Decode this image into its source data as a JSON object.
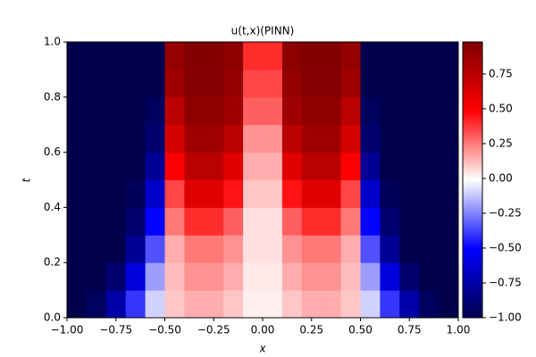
{
  "chart_data": {
    "type": "heatmap",
    "title": "u(t,x)(PINN)",
    "x_label": "x",
    "y_label": "t",
    "xlim": [
      -1,
      1
    ],
    "ylim": [
      0,
      1
    ],
    "clim": [
      -1,
      0.98
    ],
    "xticks": [
      {
        "value": -1,
        "label": "−1.00"
      },
      {
        "value": -0.75,
        "label": "−0.75"
      },
      {
        "value": -0.5,
        "label": "−0.50"
      },
      {
        "value": -0.25,
        "label": "−0.25"
      },
      {
        "value": 0,
        "label": "0.00"
      },
      {
        "value": 0.25,
        "label": "0.25"
      },
      {
        "value": 0.5,
        "label": "0.50"
      },
      {
        "value": 0.75,
        "label": "0.75"
      },
      {
        "value": 1,
        "label": "1.00"
      }
    ],
    "yticks": [
      {
        "value": 0,
        "label": "0.0"
      },
      0.2,
      0.4,
      0.6,
      0.8,
      {
        "value": 1,
        "label": "1.0"
      }
    ],
    "colorbar_ticks": [
      {
        "value": -1,
        "label": "−1.00"
      },
      {
        "value": -0.75,
        "label": "−0.75"
      },
      {
        "value": -0.5,
        "label": "−0.50"
      },
      {
        "value": -0.25,
        "label": "−0.25"
      },
      {
        "value": 0,
        "label": "0.00"
      },
      {
        "value": 0.25,
        "label": "0.25"
      },
      {
        "value": 0.5,
        "label": "0.50"
      },
      {
        "value": 0.75,
        "label": "0.75"
      }
    ],
    "z": [
      [
        -1,
        -0.95,
        -0.75,
        -0.4,
        -0.1,
        0.1,
        0.15,
        0.15,
        0.1,
        0.02,
        0.02,
        0.1,
        0.15,
        0.15,
        0.1,
        -0.1,
        -0.4,
        -0.75,
        -0.95,
        -1
      ],
      [
        -1,
        -1,
        -0.9,
        -0.6,
        -0.2,
        0.12,
        0.2,
        0.2,
        0.15,
        0.03,
        0.03,
        0.15,
        0.2,
        0.2,
        0.12,
        -0.2,
        -0.6,
        -0.9,
        -1,
        -1
      ],
      [
        -1,
        -1,
        -1,
        -0.8,
        -0.35,
        0.15,
        0.25,
        0.25,
        0.2,
        0.05,
        0.05,
        0.2,
        0.25,
        0.25,
        0.15,
        -0.35,
        -0.8,
        -1,
        -1,
        -1
      ],
      [
        -1,
        -1,
        -1,
        -0.9,
        -0.5,
        0.25,
        0.4,
        0.4,
        0.3,
        0.05,
        0.05,
        0.3,
        0.4,
        0.4,
        0.25,
        -0.5,
        -0.9,
        -1,
        -1,
        -1
      ],
      [
        -1,
        -1,
        -1,
        -0.97,
        -0.65,
        0.35,
        0.6,
        0.6,
        0.45,
        0.1,
        0.1,
        0.45,
        0.6,
        0.6,
        0.35,
        -0.65,
        -0.97,
        -1,
        -1,
        -1
      ],
      [
        -1,
        -1,
        -1,
        -1,
        -0.8,
        0.5,
        0.75,
        0.75,
        0.6,
        0.15,
        0.15,
        0.6,
        0.75,
        0.75,
        0.5,
        -0.8,
        -1,
        -1,
        -1,
        -1
      ],
      [
        -1,
        -1,
        -1,
        -1,
        -0.9,
        0.65,
        0.85,
        0.85,
        0.75,
        0.2,
        0.2,
        0.75,
        0.85,
        0.85,
        0.65,
        -0.9,
        -1,
        -1,
        -1,
        -1
      ],
      [
        -1,
        -1,
        -1,
        -1,
        -0.95,
        0.75,
        0.92,
        0.92,
        0.85,
        0.3,
        0.3,
        0.85,
        0.92,
        0.92,
        0.75,
        -0.95,
        -1,
        -1,
        -1,
        -1
      ],
      [
        -1,
        -1,
        -1,
        -1,
        -1,
        0.85,
        0.96,
        0.96,
        0.9,
        0.35,
        0.35,
        0.9,
        0.96,
        0.96,
        0.85,
        -1,
        -1,
        -1,
        -1,
        -1
      ],
      [
        -1,
        -1,
        -1,
        -1,
        -1,
        0.9,
        0.97,
        0.97,
        0.93,
        0.4,
        0.4,
        0.93,
        0.97,
        0.97,
        0.9,
        -1,
        -1,
        -1,
        -1,
        -1
      ]
    ]
  }
}
